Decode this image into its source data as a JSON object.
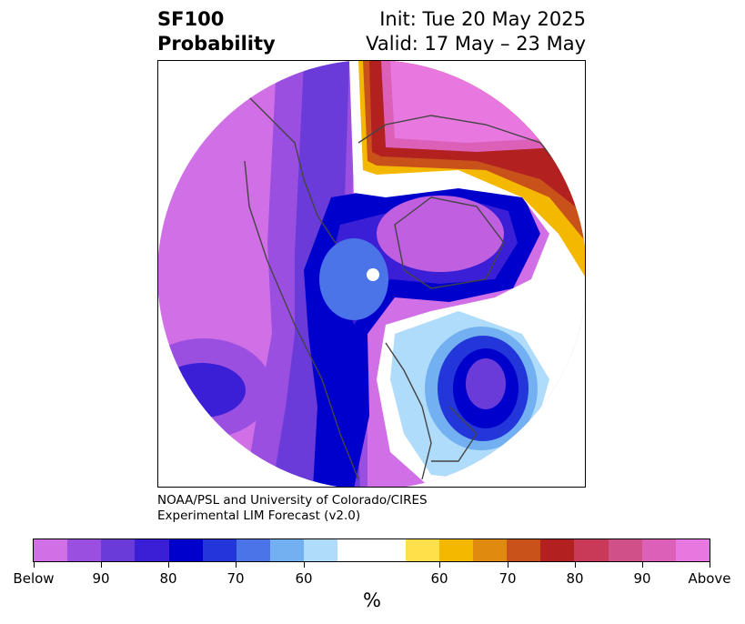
{
  "title": {
    "left_line1": "SF100",
    "left_line2": "Probability",
    "right_line1": "Init: Tue 20 May 2025",
    "right_line2": "Valid: 17 May – 23 May"
  },
  "credit": {
    "line1": "NOAA/PSL and University of Colorado/CIRES",
    "line2": "Experimental LIM Forecast (v2.0)"
  },
  "colorbar": {
    "unit_label": "%",
    "colors": [
      "#d170e6",
      "#9b4fe0",
      "#6a3bd8",
      "#3a1fd6",
      "#0000cc",
      "#2236da",
      "#4a74e8",
      "#72b0f2",
      "#aedcfa",
      "#ffffff",
      "#ffe04a",
      "#f5b800",
      "#e08a10",
      "#c8521a",
      "#b22020",
      "#c83a58",
      "#d0508a",
      "#dc60b8",
      "#e878e0"
    ],
    "tick_labels": [
      "Below",
      "90",
      "80",
      "70",
      "60",
      "60",
      "70",
      "80",
      "90",
      "Above"
    ]
  },
  "palette": {
    "below_outer": "#d170e6",
    "below_mid": "#6a3bd8",
    "below_core": "#0000cc",
    "near_normal": "#ffffff",
    "above_red": "#b22020",
    "above_outer": "#e878e0"
  }
}
